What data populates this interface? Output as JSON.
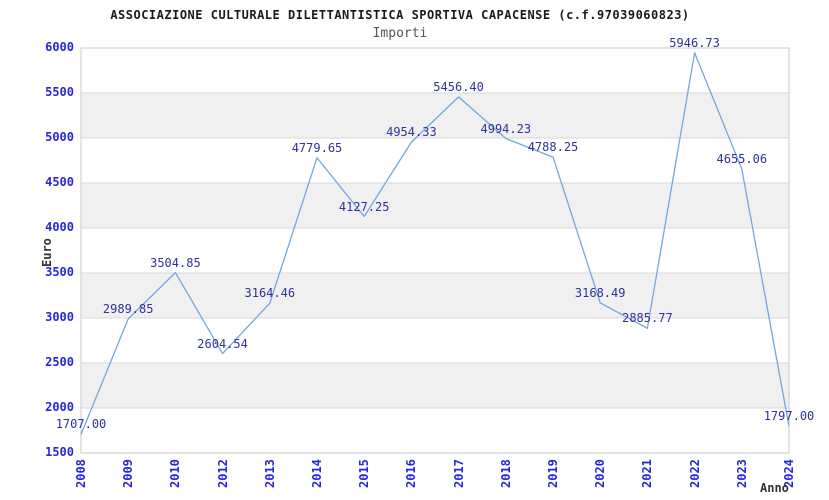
{
  "header": {
    "title": "ASSOCIAZIONE CULTURALE DILETTANTISTICA SPORTIVA CAPACENSE (c.f.97039060823)",
    "subtitle": "Importi"
  },
  "chart_data": {
    "type": "line",
    "title": "ASSOCIAZIONE CULTURALE DILETTANTISTICA SPORTIVA CAPACENSE (c.f.97039060823)",
    "subtitle": "Importi",
    "xlabel": "Anno",
    "ylabel": "Euro",
    "x": [
      "2008",
      "2009",
      "2010",
      "2012",
      "2013",
      "2014",
      "2015",
      "2016",
      "2017",
      "2018",
      "2019",
      "2020",
      "2021",
      "2022",
      "2023",
      "2024"
    ],
    "values": [
      1707.0,
      2989.85,
      3504.85,
      2604.54,
      3164.46,
      4779.65,
      4127.25,
      4954.33,
      5456.4,
      4994.23,
      4788.25,
      3168.49,
      2885.77,
      5946.73,
      4655.06,
      1797.0
    ],
    "point_labels": [
      "1707.00",
      "2989.85",
      "3504.85",
      "2604.54",
      "3164.46",
      "4779.65",
      "4127.25",
      "4954.33",
      "5456.40",
      "4994.23",
      "4788.25",
      "3168.49",
      "2885.77",
      "5946.73",
      "4655.06",
      "1797.00"
    ],
    "ylim": [
      1500,
      6000
    ],
    "ytick_step": 500,
    "grid": true,
    "legend": "none",
    "colors": {
      "line": "#74a7de",
      "point_label": "#32329b",
      "tick_label": "#2626dd",
      "grid_line": "#d9d9d9",
      "band_fill": "#f0f0f0",
      "plot_border": "#c8c8c8",
      "title": "#1a1a1a",
      "subtitle": "#555555",
      "axis_title": "#333333"
    }
  }
}
